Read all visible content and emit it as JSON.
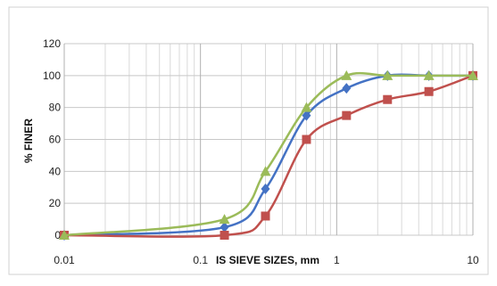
{
  "chart_data": {
    "type": "line",
    "xscale": "log",
    "xlim": [
      0.01,
      10
    ],
    "ylim": [
      0,
      120
    ],
    "xticks": [
      "0.01",
      "0.1",
      "1",
      "10"
    ],
    "yticks": [
      "0",
      "20",
      "40",
      "60",
      "80",
      "100",
      "120"
    ],
    "xlabel": "IS SIEVE SIZES, mm",
    "ylabel": "% FINER",
    "grid": true,
    "series": [
      {
        "color": "#4472c4",
        "marker": "diamond",
        "points": [
          [
            0.01,
            0
          ],
          [
            0.15,
            5
          ],
          [
            0.3,
            29
          ],
          [
            0.6,
            75
          ],
          [
            1.18,
            92
          ],
          [
            2.36,
            100
          ],
          [
            4.75,
            100
          ],
          [
            10,
            100
          ]
        ]
      },
      {
        "color": "#c0504d",
        "marker": "square",
        "points": [
          [
            0.01,
            0
          ],
          [
            0.15,
            0
          ],
          [
            0.3,
            12
          ],
          [
            0.6,
            60
          ],
          [
            1.18,
            75
          ],
          [
            2.36,
            85
          ],
          [
            4.75,
            90
          ],
          [
            10,
            100
          ]
        ]
      },
      {
        "color": "#9bbb59",
        "marker": "triangle",
        "points": [
          [
            0.01,
            0
          ],
          [
            0.15,
            10
          ],
          [
            0.3,
            40
          ],
          [
            0.6,
            80
          ],
          [
            1.18,
            100
          ],
          [
            2.36,
            100
          ],
          [
            4.75,
            100
          ],
          [
            10,
            100
          ]
        ]
      }
    ]
  }
}
